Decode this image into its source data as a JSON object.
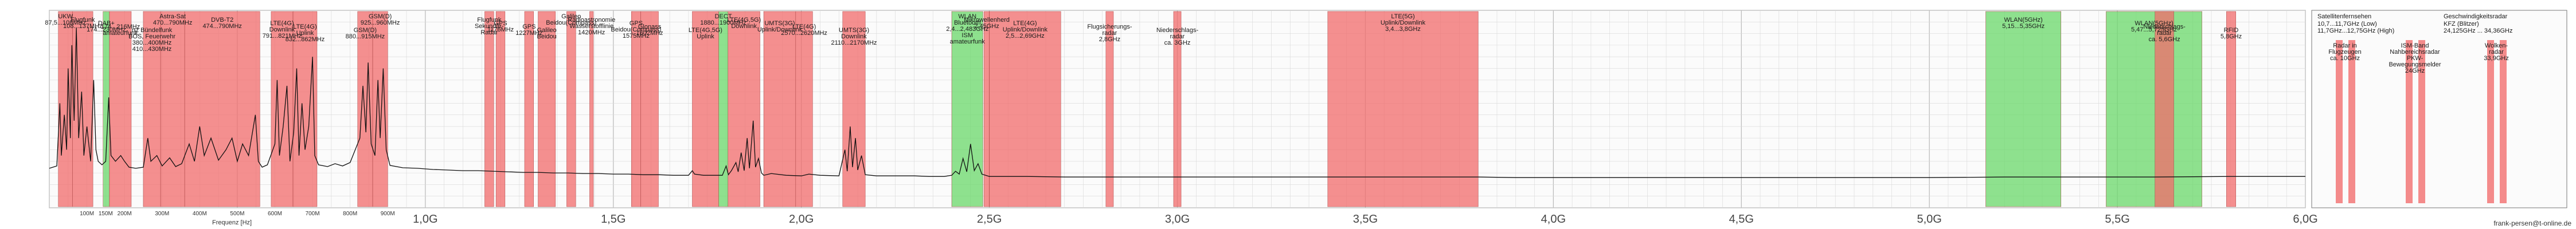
{
  "colors": {
    "background": "#ffffff",
    "plot_bg": "#fbfbfb",
    "grid": "#d8d8d8",
    "band_red": "#f26b6b",
    "band_green": "#6ad86a",
    "trace": "#111111"
  },
  "footer": {
    "credit": "frank-persen@t-online.de"
  },
  "chart_data": {
    "type": "line",
    "title": "",
    "xlabel": "Frequenz [Hz]",
    "ylabel": "",
    "xlim": [
      0,
      6000
    ],
    "x_unit": "MHz",
    "grid": true,
    "gigahertz_ticks": [
      "1,0G",
      "1,5G",
      "2,0G",
      "2,5G",
      "3,0G",
      "3,5G",
      "4,0G",
      "4,5G",
      "5,0G",
      "5,5G",
      "6,0G"
    ],
    "minor_ticks_first_ghz": [
      "100M",
      "150M",
      "200M",
      "300M",
      "400M",
      "500M",
      "600M",
      "700M",
      "800M",
      "900M"
    ],
    "bands": [
      {
        "start": 24,
        "end": 62,
        "color": "red",
        "label": [
          "UKW",
          "87,5...108MHz"
        ]
      },
      {
        "start": 62,
        "end": 116,
        "color": "red",
        "label": [
          "Flugfunk",
          "108...137MHz"
        ]
      },
      {
        "start": 143,
        "end": 160,
        "color": "green",
        "label": [
          "DAB+",
          "174...230MHz"
        ]
      },
      {
        "start": 160,
        "end": 218,
        "color": "red",
        "label": [
          "174...216MHz",
          "amateurfunk"
        ]
      },
      {
        "start": 250,
        "end": 296,
        "color": "red",
        "label": [
          "rtz Bündelfunk",
          "BOS, Feuerwehr",
          "380...400MHz",
          "410...430MHz"
        ]
      },
      {
        "start": 296,
        "end": 360,
        "color": "red",
        "label": [
          "Astra-Sat",
          "470...790MHz"
        ]
      },
      {
        "start": 360,
        "end": 560,
        "color": "red",
        "label": [
          "DVB-T2",
          "474...790MHz"
        ]
      },
      {
        "start": 590,
        "end": 648,
        "color": "red",
        "label": [
          "LTE(4G)",
          "Downlink",
          "791...821MHz"
        ]
      },
      {
        "start": 648,
        "end": 712,
        "color": "red",
        "label": [
          "LTE(4G)",
          "Uplink",
          "832...862MHz"
        ]
      },
      {
        "start": 820,
        "end": 860,
        "color": "red",
        "label": [
          "GSM(D)",
          "880...915MHz"
        ]
      },
      {
        "start": 860,
        "end": 900,
        "color": "red",
        "label": [
          "GSM(D)",
          "925...960MHz"
        ]
      },
      {
        "start": 1158,
        "end": 1182,
        "color": "red",
        "label": [
          "Flugfunk",
          "Sekundär-",
          "Radar"
        ]
      },
      {
        "start": 1188,
        "end": 1212,
        "color": "red",
        "label": [
          "GPS",
          "1176MHz"
        ]
      },
      {
        "start": 1264,
        "end": 1288,
        "color": "red",
        "label": [
          "GPS",
          "1227MHz"
        ]
      },
      {
        "start": 1300,
        "end": 1346,
        "color": "red",
        "label": [
          "Galileo",
          "Beidou"
        ]
      },
      {
        "start": 1376,
        "end": 1400,
        "color": "red",
        "label": [
          "Galileo",
          "Beidou(Compass)"
        ]
      },
      {
        "start": 1437,
        "end": 1447,
        "color": "red",
        "label": [
          "Radioastronomie",
          "Wasserstofflinie",
          "1420MHz"
        ]
      },
      {
        "start": 1548,
        "end": 1573,
        "color": "red",
        "label": [
          "GPS",
          "Beidou(Compass)",
          "1575MHz"
        ]
      },
      {
        "start": 1573,
        "end": 1620,
        "color": "red",
        "label": [
          "Glonass",
          "1602MHz"
        ]
      },
      {
        "start": 1710,
        "end": 1780,
        "color": "red",
        "label": [
          "LTE(4G,5G)",
          "Uplink"
        ]
      },
      {
        "start": 1780,
        "end": 1805,
        "color": "green",
        "label": [
          "DECT",
          "1880...1900MHz"
        ]
      },
      {
        "start": 1805,
        "end": 1890,
        "color": "red",
        "label": [
          "LTE(4G,5G)",
          "Downlink"
        ]
      },
      {
        "start": 1900,
        "end": 1985,
        "color": "red",
        "label": [
          "UMTS(3G)",
          "Uplink/Downlink"
        ]
      },
      {
        "start": 1985,
        "end": 2030,
        "color": "red",
        "label": [
          "LTE(4G)",
          "2570...2620MHz"
        ]
      },
      {
        "start": 2110,
        "end": 2170,
        "color": "red",
        "label": [
          "UMTS(3G)",
          "Downlink",
          "2110...2170MHz"
        ]
      },
      {
        "start": 2400,
        "end": 2483,
        "color": "green",
        "label": [
          "WLAN",
          "Bluetooth",
          "2,4...2,483GHz",
          "ISM",
          "amateurfunk"
        ]
      },
      {
        "start": 2486,
        "end": 2500,
        "color": "red",
        "label": [
          "Mikrowellenherd",
          "2,45GHz"
        ]
      },
      {
        "start": 2500,
        "end": 2690,
        "color": "red",
        "label": [
          "LTE(4G)",
          "Uplink/Downlink",
          "2,5...2,69GHz"
        ]
      },
      {
        "start": 2810,
        "end": 2830,
        "color": "red",
        "label": [
          "Flugsicherungs-",
          "radar",
          "2,8GHz"
        ]
      },
      {
        "start": 2990,
        "end": 3010,
        "color": "red",
        "label": [
          "Niederschlags-",
          "radar",
          "ca. 3GHz"
        ]
      },
      {
        "start": 3400,
        "end": 3800,
        "color": "red",
        "label": [
          "LTE(5G)",
          "Uplink/Downlink",
          "3,4...3,8GHz"
        ]
      },
      {
        "start": 5150,
        "end": 5350,
        "color": "green",
        "label": [
          "WLAN(5GHz)",
          "5,15...5,35GHz"
        ]
      },
      {
        "start": 5470,
        "end": 5725,
        "color": "green",
        "label": [
          "WLAN(5GHz)",
          "5,47...5,725GHz"
        ]
      },
      {
        "start": 5600,
        "end": 5650,
        "color": "red",
        "label": [
          "Niederschlags-",
          "radar",
          "ca. 5,6GHz"
        ]
      },
      {
        "start": 5790,
        "end": 5815,
        "color": "red",
        "label": [
          "RFID",
          "5,8GHz"
        ]
      }
    ],
    "inset": {
      "title": "Satellitenfernsehen",
      "subtitle": [
        "10,7...11,7GHz (Low)",
        "11,7GHz...12,75GHz (High)"
      ],
      "title_right": "Geschwindigkeitsradar",
      "subtitle_right": [
        "KFZ (Blitzer)",
        "24,125GHz ... 34,36GHz"
      ],
      "markers": [
        {
          "label": [
            "Radar in",
            "Flugzeugen",
            "ca. 10GHz"
          ]
        },
        {
          "label": [
            "ISM-Band",
            "Nahbereichsradar",
            "PKW-",
            "Bewegungsmelder",
            "24GHz"
          ]
        },
        {
          "label": [
            "Wolken-",
            "radar",
            "33,9GHz"
          ]
        }
      ]
    },
    "series": [
      {
        "values_description_free": true,
        "points": [
          [
            0,
            6.8
          ],
          [
            20,
            7.2
          ],
          [
            28,
            18
          ],
          [
            32,
            9
          ],
          [
            40,
            16
          ],
          [
            46,
            10
          ],
          [
            50,
            24
          ],
          [
            56,
            12
          ],
          [
            60,
            28
          ],
          [
            66,
            15
          ],
          [
            72,
            31
          ],
          [
            78,
            12
          ],
          [
            86,
            20
          ],
          [
            92,
            9
          ],
          [
            100,
            14
          ],
          [
            110,
            8
          ],
          [
            118,
            22
          ],
          [
            124,
            10
          ],
          [
            130,
            8
          ],
          [
            140,
            7.4
          ],
          [
            150,
            8
          ],
          [
            158,
            19
          ],
          [
            164,
            9
          ],
          [
            176,
            8
          ],
          [
            190,
            9
          ],
          [
            200,
            8
          ],
          [
            212,
            7
          ],
          [
            230,
            6.8
          ],
          [
            250,
            7
          ],
          [
            262,
            12
          ],
          [
            270,
            8
          ],
          [
            286,
            9
          ],
          [
            300,
            7.2
          ],
          [
            320,
            8.6
          ],
          [
            336,
            7.1
          ],
          [
            352,
            7.6
          ],
          [
            372,
            11
          ],
          [
            386,
            8
          ],
          [
            400,
            14
          ],
          [
            412,
            9
          ],
          [
            430,
            12
          ],
          [
            450,
            8.2
          ],
          [
            470,
            10
          ],
          [
            486,
            12
          ],
          [
            500,
            8
          ],
          [
            514,
            11
          ],
          [
            530,
            9
          ],
          [
            548,
            16
          ],
          [
            556,
            8
          ],
          [
            566,
            7
          ],
          [
            580,
            7.4
          ],
          [
            600,
            11
          ],
          [
            606,
            22
          ],
          [
            612,
            9
          ],
          [
            622,
            14
          ],
          [
            632,
            21
          ],
          [
            640,
            8
          ],
          [
            650,
            13
          ],
          [
            658,
            24
          ],
          [
            664,
            9
          ],
          [
            672,
            18
          ],
          [
            680,
            10
          ],
          [
            690,
            14
          ],
          [
            700,
            26
          ],
          [
            706,
            9
          ],
          [
            716,
            7.4
          ],
          [
            740,
            7.1
          ],
          [
            760,
            7.6
          ],
          [
            780,
            7.2
          ],
          [
            800,
            7.8
          ],
          [
            826,
            12
          ],
          [
            834,
            21
          ],
          [
            842,
            13
          ],
          [
            848,
            25
          ],
          [
            856,
            11
          ],
          [
            866,
            9
          ],
          [
            874,
            22
          ],
          [
            880,
            12
          ],
          [
            888,
            24
          ],
          [
            896,
            10
          ],
          [
            906,
            7.3
          ],
          [
            940,
            6.9
          ],
          [
            980,
            6.8
          ],
          [
            1020,
            6.6
          ],
          [
            1060,
            6.5
          ],
          [
            1100,
            6.4
          ],
          [
            1140,
            6.4
          ],
          [
            1180,
            6.3
          ],
          [
            1220,
            6.2
          ],
          [
            1260,
            6.1
          ],
          [
            1300,
            6.1
          ],
          [
            1340,
            6.0
          ],
          [
            1380,
            6.0
          ],
          [
            1420,
            5.9
          ],
          [
            1460,
            5.9
          ],
          [
            1500,
            5.8
          ],
          [
            1540,
            5.8
          ],
          [
            1580,
            5.7
          ],
          [
            1620,
            5.7
          ],
          [
            1660,
            5.6
          ],
          [
            1700,
            5.6
          ],
          [
            1710,
            6.4
          ],
          [
            1716,
            5.8
          ],
          [
            1740,
            5.6
          ],
          [
            1790,
            5.6
          ],
          [
            1800,
            7.2
          ],
          [
            1806,
            5.7
          ],
          [
            1814,
            6.4
          ],
          [
            1826,
            7.8
          ],
          [
            1832,
            6.2
          ],
          [
            1840,
            9.5
          ],
          [
            1848,
            6.4
          ],
          [
            1856,
            12
          ],
          [
            1862,
            6.8
          ],
          [
            1872,
            15
          ],
          [
            1878,
            7
          ],
          [
            1886,
            8.5
          ],
          [
            1894,
            6
          ],
          [
            1900,
            5.6
          ],
          [
            1920,
            5.9
          ],
          [
            1960,
            5.6
          ],
          [
            2000,
            5.5
          ],
          [
            2020,
            5.8
          ],
          [
            2050,
            5.6
          ],
          [
            2100,
            5.5
          ],
          [
            2116,
            10
          ],
          [
            2122,
            6.3
          ],
          [
            2130,
            14
          ],
          [
            2136,
            7
          ],
          [
            2144,
            12
          ],
          [
            2150,
            6.5
          ],
          [
            2160,
            9
          ],
          [
            2170,
            5.7
          ],
          [
            2200,
            5.5
          ],
          [
            2260,
            5.5
          ],
          [
            2300,
            5.5
          ],
          [
            2340,
            5.4
          ],
          [
            2380,
            5.4
          ],
          [
            2400,
            5.6
          ],
          [
            2410,
            6.3
          ],
          [
            2420,
            5.8
          ],
          [
            2430,
            8.5
          ],
          [
            2440,
            6.2
          ],
          [
            2450,
            11
          ],
          [
            2460,
            6.4
          ],
          [
            2470,
            7.6
          ],
          [
            2480,
            5.8
          ],
          [
            2500,
            5.4
          ],
          [
            2600,
            5.4
          ],
          [
            2700,
            5.3
          ],
          [
            2800,
            5.3
          ],
          [
            2900,
            5.3
          ],
          [
            3000,
            5.3
          ],
          [
            3100,
            5.3
          ],
          [
            3200,
            5.3
          ],
          [
            3300,
            5.3
          ],
          [
            3400,
            5.3
          ],
          [
            3500,
            5.3
          ],
          [
            3600,
            5.3
          ],
          [
            3700,
            5.3
          ],
          [
            3800,
            5.3
          ],
          [
            3900,
            5.2
          ],
          [
            4000,
            5.2
          ],
          [
            4200,
            5.2
          ],
          [
            4400,
            5.2
          ],
          [
            4600,
            5.2
          ],
          [
            4800,
            5.2
          ],
          [
            5000,
            5.2
          ],
          [
            5200,
            5.3
          ],
          [
            5400,
            5.3
          ],
          [
            5600,
            5.3
          ],
          [
            5800,
            5.4
          ],
          [
            6000,
            5.4
          ]
        ]
      }
    ]
  }
}
